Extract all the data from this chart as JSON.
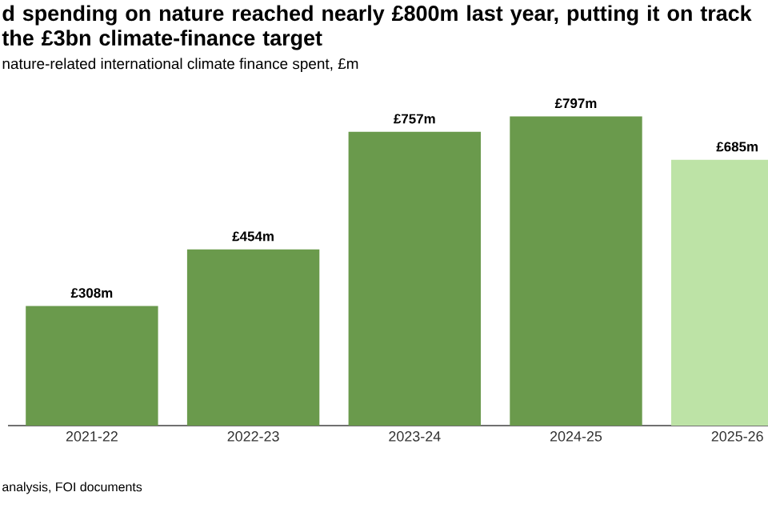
{
  "chart_data": {
    "type": "bar",
    "title": "d spending on nature reached nearly £800m last year, putting it on track the £3bn climate-finance target",
    "subtitle": "nature-related international climate finance spent, £m",
    "categories": [
      "2021-22",
      "2022-23",
      "2023-24",
      "2024-25",
      "2025-26"
    ],
    "values": [
      308,
      454,
      757,
      797,
      685
    ],
    "colors": [
      "#6a9a4c",
      "#6a9a4c",
      "#6a9a4c",
      "#6a9a4c",
      "#bde3a6"
    ],
    "value_labels": [
      "£308m",
      "£454m",
      "£757m",
      "£797m",
      "£685m"
    ],
    "ylim": [
      0,
      800
    ],
    "tick_labels": "x",
    "annotations": [
      "analysis, FOI documents"
    ]
  }
}
